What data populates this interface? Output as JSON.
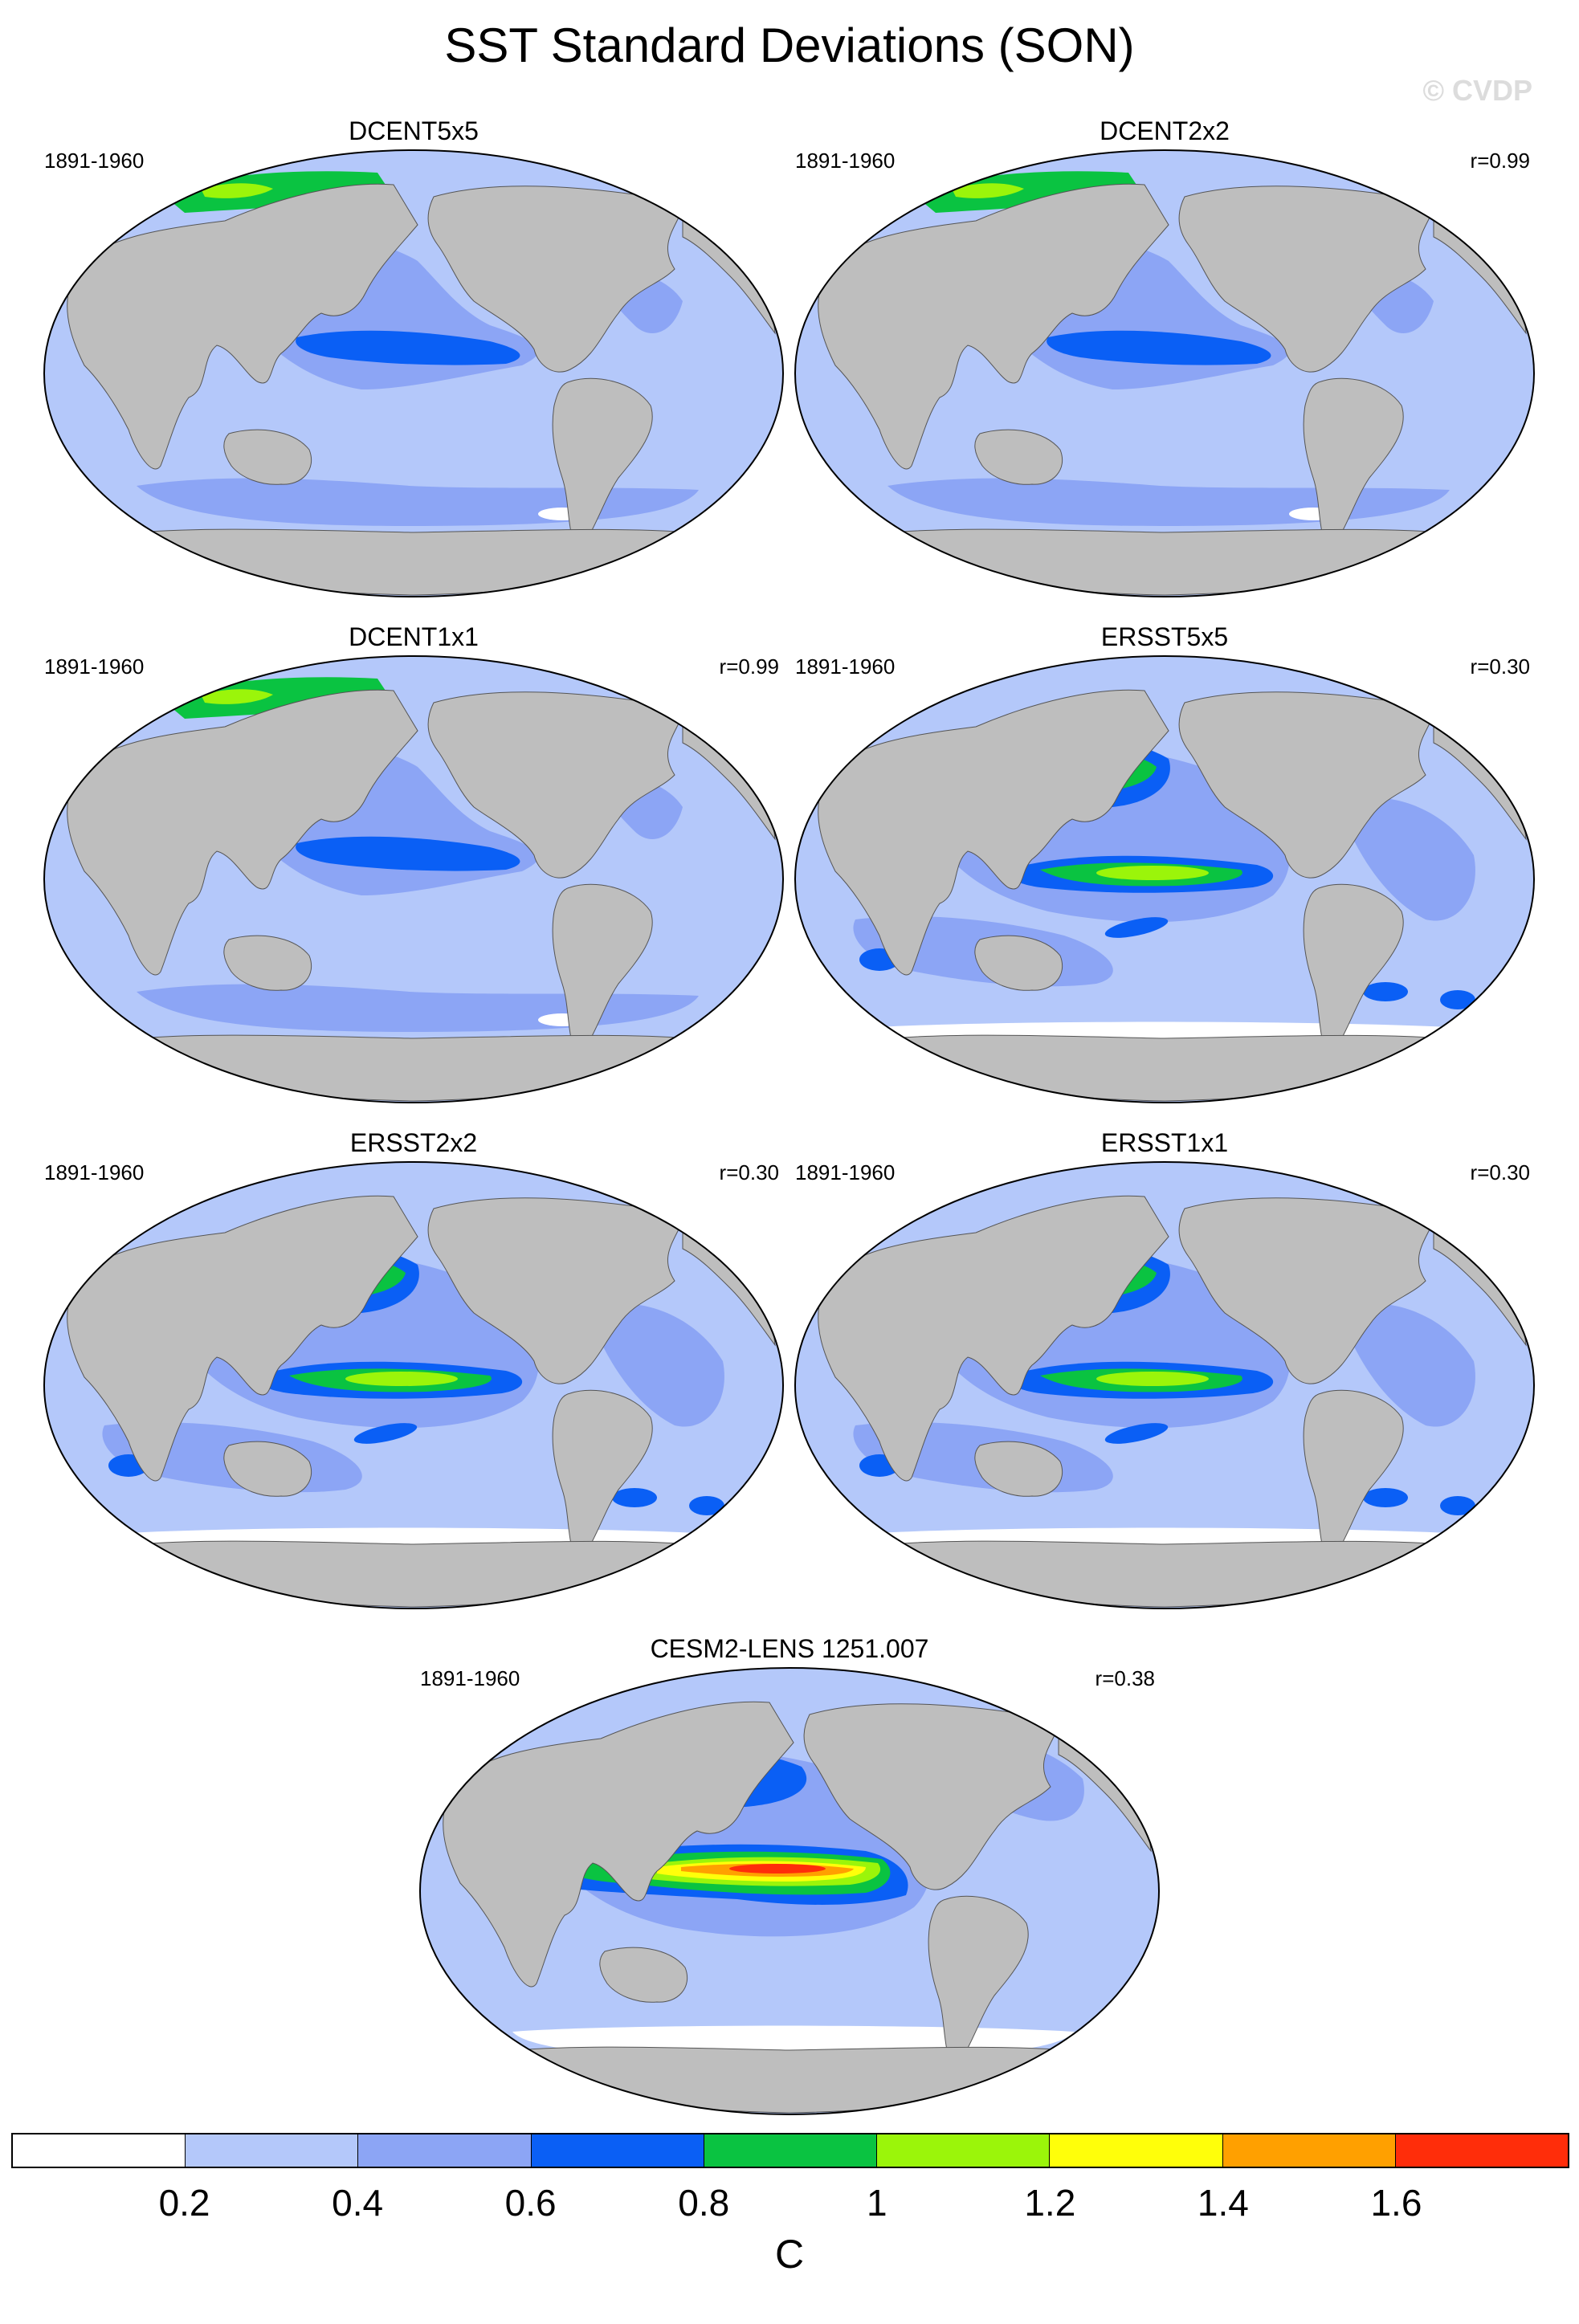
{
  "title": "SST Standard Deviations (SON)",
  "watermark": "© CVDP",
  "panels": [
    {
      "title": "DCENT5x5",
      "period": "1891-1960",
      "corr": "",
      "style": "coarse"
    },
    {
      "title": "DCENT2x2",
      "period": "1891-1960",
      "corr": "r=0.99",
      "style": "coarse"
    },
    {
      "title": "DCENT1x1",
      "period": "1891-1960",
      "corr": "r=0.99",
      "style": "coarse"
    },
    {
      "title": "ERSST5x5",
      "period": "1891-1960",
      "corr": "r=0.30",
      "style": "ersst"
    },
    {
      "title": "ERSST2x2",
      "period": "1891-1960",
      "corr": "r=0.30",
      "style": "ersst"
    },
    {
      "title": "ERSST1x1",
      "period": "1891-1960",
      "corr": "r=0.30",
      "style": "ersst"
    },
    {
      "title": "CESM2-LENS 1251.007",
      "period": "1891-1960",
      "corr": "r=0.38",
      "style": "cesm"
    }
  ],
  "colorbar": {
    "unit": "C",
    "ticks": [
      "0.2",
      "0.4",
      "0.6",
      "0.8",
      "1",
      "1.2",
      "1.4",
      "1.6"
    ],
    "colors": [
      "#ffffff",
      "#b4c8fa",
      "#8ca5f5",
      "#0a5ff5",
      "#0ac341",
      "#9bf50a",
      "#ffff0a",
      "#ffa000",
      "#ff2d0a"
    ]
  },
  "land_color": "#bebebe"
}
